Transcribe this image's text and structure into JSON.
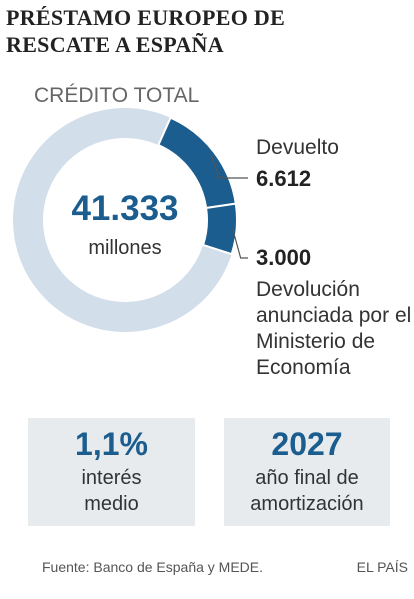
{
  "chart_data": {
    "type": "donut",
    "title": "PRÉSTAMO EUROPEO DE RESCATE A ESPAÑA",
    "subtitle": "CRÉDITO TOTAL",
    "total": {
      "value": 41333,
      "label": "41.333"
    },
    "unit": "millones",
    "total_color": "#d3deeb",
    "series": [
      {
        "name": "Devuelto",
        "color": "#1a5d8e",
        "value": 6612,
        "value_label": "6.612"
      },
      {
        "name": "Devolución anunciada por el Ministerio de Economía",
        "color": "#1a5d8e",
        "value": 3000,
        "value_label": "3.000"
      }
    ]
  },
  "highlights": [
    {
      "value": 1.1,
      "value_label": "1,1%",
      "label": "interés medio"
    },
    {
      "value": 2027,
      "label": "año final de amortización"
    }
  ],
  "source": "Fuente: Banco de España y MEDE.",
  "brand": "EL PAÍS"
}
